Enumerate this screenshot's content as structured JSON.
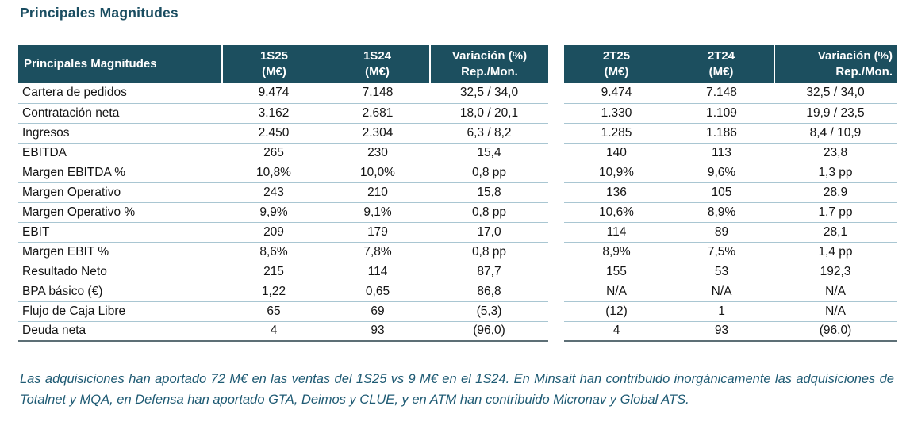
{
  "title": "Principales Magnitudes",
  "colors": {
    "header_bg": "#1C4F5F",
    "title": "#1A4D61",
    "footnote": "#1E5A73",
    "row_divider": "#A9C6D2",
    "table_bottom_border": "#5D6F76"
  },
  "tables": [
    {
      "name": "semester-table",
      "label_header": "Principales Magnitudes",
      "columns": [
        {
          "period": "1S25",
          "unit": "(M€)"
        },
        {
          "period": "1S24",
          "unit": "(M€)"
        },
        {
          "period": "Variación (%)",
          "unit": "Rep./Mon."
        }
      ],
      "rows": [
        {
          "label": "Cartera de pedidos",
          "values": [
            "9.474",
            "7.148",
            "32,5 / 34,0"
          ]
        },
        {
          "label": "Contratación neta",
          "values": [
            "3.162",
            "2.681",
            "18,0 / 20,1"
          ]
        },
        {
          "label": "Ingresos",
          "values": [
            "2.450",
            "2.304",
            "6,3 / 8,2"
          ]
        },
        {
          "label": "EBITDA",
          "values": [
            "265",
            "230",
            "15,4"
          ]
        },
        {
          "label": "Margen EBITDA %",
          "values": [
            "10,8%",
            "10,0%",
            "0,8 pp"
          ]
        },
        {
          "label": "Margen Operativo",
          "values": [
            "243",
            "210",
            "15,8"
          ]
        },
        {
          "label": "Margen Operativo %",
          "values": [
            "9,9%",
            "9,1%",
            "0,8 pp"
          ]
        },
        {
          "label": "EBIT",
          "values": [
            "209",
            "179",
            "17,0"
          ]
        },
        {
          "label": "Margen EBIT %",
          "values": [
            "8,6%",
            "7,8%",
            "0,8 pp"
          ]
        },
        {
          "label": "Resultado Neto",
          "values": [
            "215",
            "114",
            "87,7"
          ]
        },
        {
          "label": "BPA básico (€)",
          "values": [
            "1,22",
            "0,65",
            "86,8"
          ]
        },
        {
          "label": "Flujo de Caja Libre",
          "values": [
            "65",
            "69",
            "(5,3)"
          ]
        },
        {
          "label": "Deuda neta",
          "values": [
            "4",
            "93",
            "(96,0)"
          ]
        }
      ]
    },
    {
      "name": "quarter-table",
      "columns": [
        {
          "period": "2T25",
          "unit": "(M€)"
        },
        {
          "period": "2T24",
          "unit": "(M€)"
        },
        {
          "period": "Variación (%)",
          "unit": "Rep./Mon."
        }
      ],
      "rows": [
        {
          "values": [
            "9.474",
            "7.148",
            "32,5 / 34,0"
          ]
        },
        {
          "values": [
            "1.330",
            "1.109",
            "19,9 / 23,5"
          ]
        },
        {
          "values": [
            "1.285",
            "1.186",
            "8,4 / 10,9"
          ]
        },
        {
          "values": [
            "140",
            "113",
            "23,8"
          ]
        },
        {
          "values": [
            "10,9%",
            "9,6%",
            "1,3 pp"
          ]
        },
        {
          "values": [
            "136",
            "105",
            "28,9"
          ]
        },
        {
          "values": [
            "10,6%",
            "8,9%",
            "1,7 pp"
          ]
        },
        {
          "values": [
            "114",
            "89",
            "28,1"
          ]
        },
        {
          "values": [
            "8,9%",
            "7,5%",
            "1,4 pp"
          ]
        },
        {
          "values": [
            "155",
            "53",
            "192,3"
          ]
        },
        {
          "values": [
            "N/A",
            "N/A",
            "N/A"
          ]
        },
        {
          "values": [
            "(12)",
            "1",
            "N/A"
          ]
        },
        {
          "values": [
            "4",
            "93",
            "(96,0)"
          ]
        }
      ]
    }
  ],
  "footnote": "Las adquisiciones han aportado 72 M€ en las ventas del 1S25 vs 9 M€ en el 1S24. En Minsait han contribuido inorgánicamente las adquisiciones de Totalnet y MQA, en Defensa han aportado GTA, Deimos y CLUE, y en ATM han contribuido Micronav y Global ATS."
}
